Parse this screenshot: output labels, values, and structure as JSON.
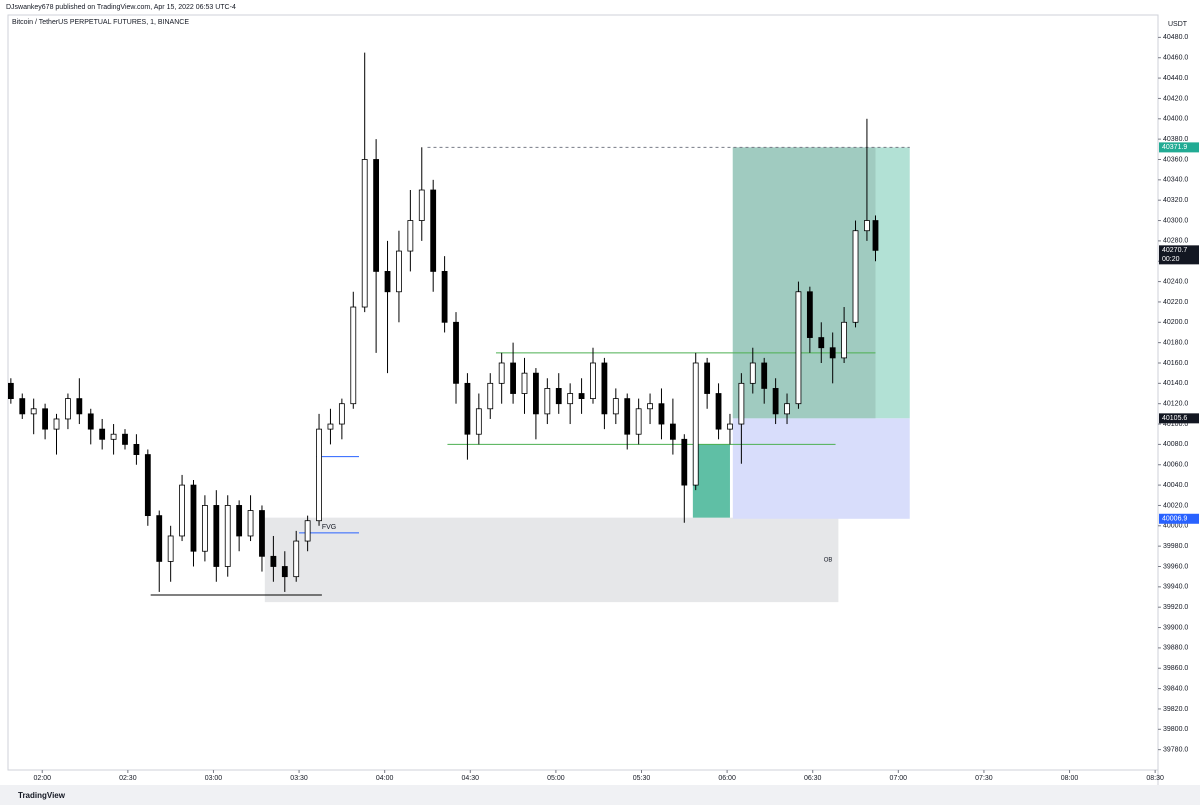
{
  "header": {
    "publisher": "DJswankey678 published on TradingView.com, Apr 15, 2022 06:53 UTC-4"
  },
  "footer": {
    "brand": "TradingView"
  },
  "chart_data": {
    "type": "candlestick",
    "title": "Bitcoin / TetherUS PERPETUAL FUTURES, 1, BINANCE",
    "y_unit": "USDT",
    "x": [
      109,
      113,
      117,
      121,
      125,
      129,
      133,
      137,
      141,
      145,
      149,
      153,
      157,
      161,
      165,
      169,
      173,
      177,
      181,
      185,
      189,
      193,
      197,
      201,
      205,
      209,
      213,
      217,
      221,
      225,
      229,
      233,
      237,
      241,
      245,
      249,
      253,
      257,
      261,
      265,
      269,
      273,
      277,
      281,
      285,
      289,
      293,
      297,
      301,
      305,
      309,
      313,
      317,
      321,
      325,
      329,
      333,
      337,
      341,
      345,
      349,
      353,
      357,
      361,
      365,
      369,
      373,
      377,
      381,
      385,
      389,
      393,
      397,
      401,
      405,
      409,
      412
    ],
    "open": [
      40140,
      40125,
      40110,
      40115,
      40095,
      40105,
      40125,
      40110,
      40095,
      40085,
      40090,
      40080,
      40070,
      40010,
      39965,
      39990,
      40040,
      39975,
      40020,
      39960,
      40020,
      39990,
      40015,
      39970,
      39960,
      39950,
      39985,
      40005,
      40095,
      40100,
      40120,
      40215,
      40360,
      40250,
      40230,
      40270,
      40300,
      40330,
      40250,
      40200,
      40140,
      40090,
      40115,
      40140,
      40160,
      40130,
      40150,
      40110,
      40135,
      40120,
      40130,
      40125,
      40160,
      40110,
      40125,
      40090,
      40115,
      40120,
      40100,
      40085,
      40040,
      40160,
      40130,
      40095,
      40100,
      40140,
      40160,
      40135,
      40110,
      40120,
      40230,
      40185,
      40175,
      40165,
      40200,
      40290,
      40300
    ],
    "high": [
      40145,
      40130,
      40125,
      40120,
      40110,
      40130,
      40145,
      40115,
      40105,
      40100,
      40095,
      40090,
      40075,
      40015,
      40000,
      40050,
      40045,
      40030,
      40035,
      40030,
      40025,
      40030,
      40020,
      39990,
      39975,
      39995,
      40010,
      40110,
      40115,
      40125,
      40230,
      40465,
      40380,
      40280,
      40290,
      40330,
      40372,
      40340,
      40265,
      40210,
      40150,
      40130,
      40150,
      40170,
      40180,
      40165,
      40155,
      40145,
      40150,
      40140,
      40145,
      40175,
      40165,
      40135,
      40130,
      40125,
      40130,
      40135,
      40125,
      40090,
      40170,
      40165,
      40140,
      40110,
      40150,
      40175,
      40165,
      40145,
      40130,
      40240,
      40235,
      40200,
      40190,
      40215,
      40300,
      40400,
      40305
    ],
    "low": [
      40120,
      40105,
      40090,
      40085,
      40070,
      40095,
      40100,
      40080,
      40075,
      40070,
      40075,
      40060,
      40000,
      39935,
      39945,
      39985,
      39960,
      39965,
      39945,
      39950,
      39975,
      39985,
      39955,
      39945,
      39935,
      39945,
      39975,
      40000,
      40080,
      40085,
      40115,
      40210,
      40170,
      40150,
      40200,
      40250,
      40280,
      40230,
      40190,
      40120,
      40065,
      40080,
      40105,
      40120,
      40120,
      40110,
      40085,
      40100,
      40110,
      40100,
      40110,
      40120,
      40095,
      40100,
      40075,
      40080,
      40100,
      40085,
      40070,
      40003,
      40035,
      40115,
      40085,
      40080,
      40061,
      40130,
      40120,
      40100,
      40100,
      40115,
      40170,
      40160,
      40140,
      40160,
      40195,
      40280,
      40260
    ],
    "close": [
      40125,
      40110,
      40115,
      40095,
      40105,
      40125,
      40110,
      40095,
      40085,
      40090,
      40080,
      40070,
      40010,
      39965,
      39990,
      40040,
      39975,
      40020,
      39960,
      40020,
      39990,
      40015,
      39970,
      39960,
      39950,
      39985,
      40005,
      40095,
      40100,
      40120,
      40215,
      40360,
      40250,
      40230,
      40270,
      40300,
      40330,
      40250,
      40200,
      40140,
      40090,
      40115,
      40140,
      40160,
      40130,
      40150,
      40110,
      40135,
      40120,
      40130,
      40125,
      40160,
      40110,
      40125,
      40090,
      40115,
      40120,
      40100,
      40085,
      40040,
      40160,
      40130,
      40095,
      40100,
      40140,
      40160,
      40135,
      40110,
      40120,
      40230,
      40185,
      40175,
      40165,
      40200,
      40290,
      40300,
      40270.7
    ],
    "up_color": "#ffffff",
    "down_color": "#000000",
    "countdown": "00:20",
    "xlim": [
      108,
      511
    ],
    "ylim": [
      39760,
      40502
    ],
    "xticks": [
      {
        "value": 120,
        "label": "02:00"
      },
      {
        "value": 150,
        "label": "02:30"
      },
      {
        "value": 180,
        "label": "03:00"
      },
      {
        "value": 210,
        "label": "03:30"
      },
      {
        "value": 240,
        "label": "04:00"
      },
      {
        "value": 270,
        "label": "04:30"
      },
      {
        "value": 300,
        "label": "05:00"
      },
      {
        "value": 330,
        "label": "05:30"
      },
      {
        "value": 360,
        "label": "06:00"
      },
      {
        "value": 390,
        "label": "06:30"
      },
      {
        "value": 420,
        "label": "07:00"
      },
      {
        "value": 450,
        "label": "07:30"
      },
      {
        "value": 480,
        "label": "08:00"
      },
      {
        "value": 510,
        "label": "08:30"
      }
    ],
    "yticks": [
      {
        "value": 39780,
        "label": "39780.0"
      },
      {
        "value": 39800,
        "label": "39800.0"
      },
      {
        "value": 39820,
        "label": "39820.0"
      },
      {
        "value": 39840,
        "label": "39840.0"
      },
      {
        "value": 39860,
        "label": "39860.0"
      },
      {
        "value": 39880,
        "label": "39880.0"
      },
      {
        "value": 39900,
        "label": "39900.0"
      },
      {
        "value": 39920,
        "label": "39920.0"
      },
      {
        "value": 39940,
        "label": "39940.0"
      },
      {
        "value": 39960,
        "label": "39960.0"
      },
      {
        "value": 39980,
        "label": "39980.0"
      },
      {
        "value": 40000,
        "label": "40000.0"
      },
      {
        "value": 40020,
        "label": "40020.0"
      },
      {
        "value": 40040,
        "label": "40040.0"
      },
      {
        "value": 40060,
        "label": "40060.0"
      },
      {
        "value": 40080,
        "label": "40080.0"
      },
      {
        "value": 40100,
        "label": "40100.0"
      },
      {
        "value": 40120,
        "label": "40120.0"
      },
      {
        "value": 40140,
        "label": "40140.0"
      },
      {
        "value": 40160,
        "label": "40160.0"
      },
      {
        "value": 40180,
        "label": "40180.0"
      },
      {
        "value": 40200,
        "label": "40200.0"
      },
      {
        "value": 40220,
        "label": "40220.0"
      },
      {
        "value": 40240,
        "label": "40240.0"
      },
      {
        "value": 40260,
        "label": "40260.0"
      },
      {
        "value": 40280,
        "label": "40280.0"
      },
      {
        "value": 40300,
        "label": "40300.0"
      },
      {
        "value": 40320,
        "label": "40320.0"
      },
      {
        "value": 40340,
        "label": "40340.0"
      },
      {
        "value": 40360,
        "label": "40360.0"
      },
      {
        "value": 40380,
        "label": "40380.0"
      },
      {
        "value": 40400,
        "label": "40400.0"
      },
      {
        "value": 40420,
        "label": "40420.0"
      },
      {
        "value": 40440,
        "label": "40440.0"
      },
      {
        "value": 40460,
        "label": "40460.0"
      },
      {
        "value": 40480,
        "label": "40480.0"
      }
    ],
    "position": {
      "entry": 40105.6,
      "target": 40371.9,
      "stop": 40006.9,
      "time": [
        362,
        424
      ],
      "profit_color": "#b2e1d5",
      "loss_color": "#d8ddfb",
      "target_color": "#22ab94",
      "stop_color": "#2962ff"
    },
    "zones": [
      {
        "label": "OB",
        "time": [
          198,
          399
        ],
        "price": [
          39925,
          40008
        ],
        "color": "#e6e7e9"
      },
      {
        "time": [
          348,
          361
        ],
        "price": [
          40008,
          40080
        ],
        "color": "#5fbfa5"
      }
    ],
    "levels": [
      {
        "price": 40170,
        "time": [
          279,
          412
        ],
        "color": "#4caf50"
      },
      {
        "price": 40080,
        "time": [
          262,
          398
        ],
        "color": "#4caf50"
      },
      {
        "price": 39932,
        "time": [
          158,
          218
        ],
        "color": "#000000"
      },
      {
        "price": 40068,
        "time": [
          216,
          231
        ],
        "color": "#2962ff"
      },
      {
        "label": "FVG",
        "price": 39993,
        "time": [
          210,
          231
        ],
        "color": "#2962ff"
      },
      {
        "price": 40371.9,
        "time": [
          255,
          424
        ],
        "color": "#787b86",
        "dashed": true
      }
    ]
  }
}
